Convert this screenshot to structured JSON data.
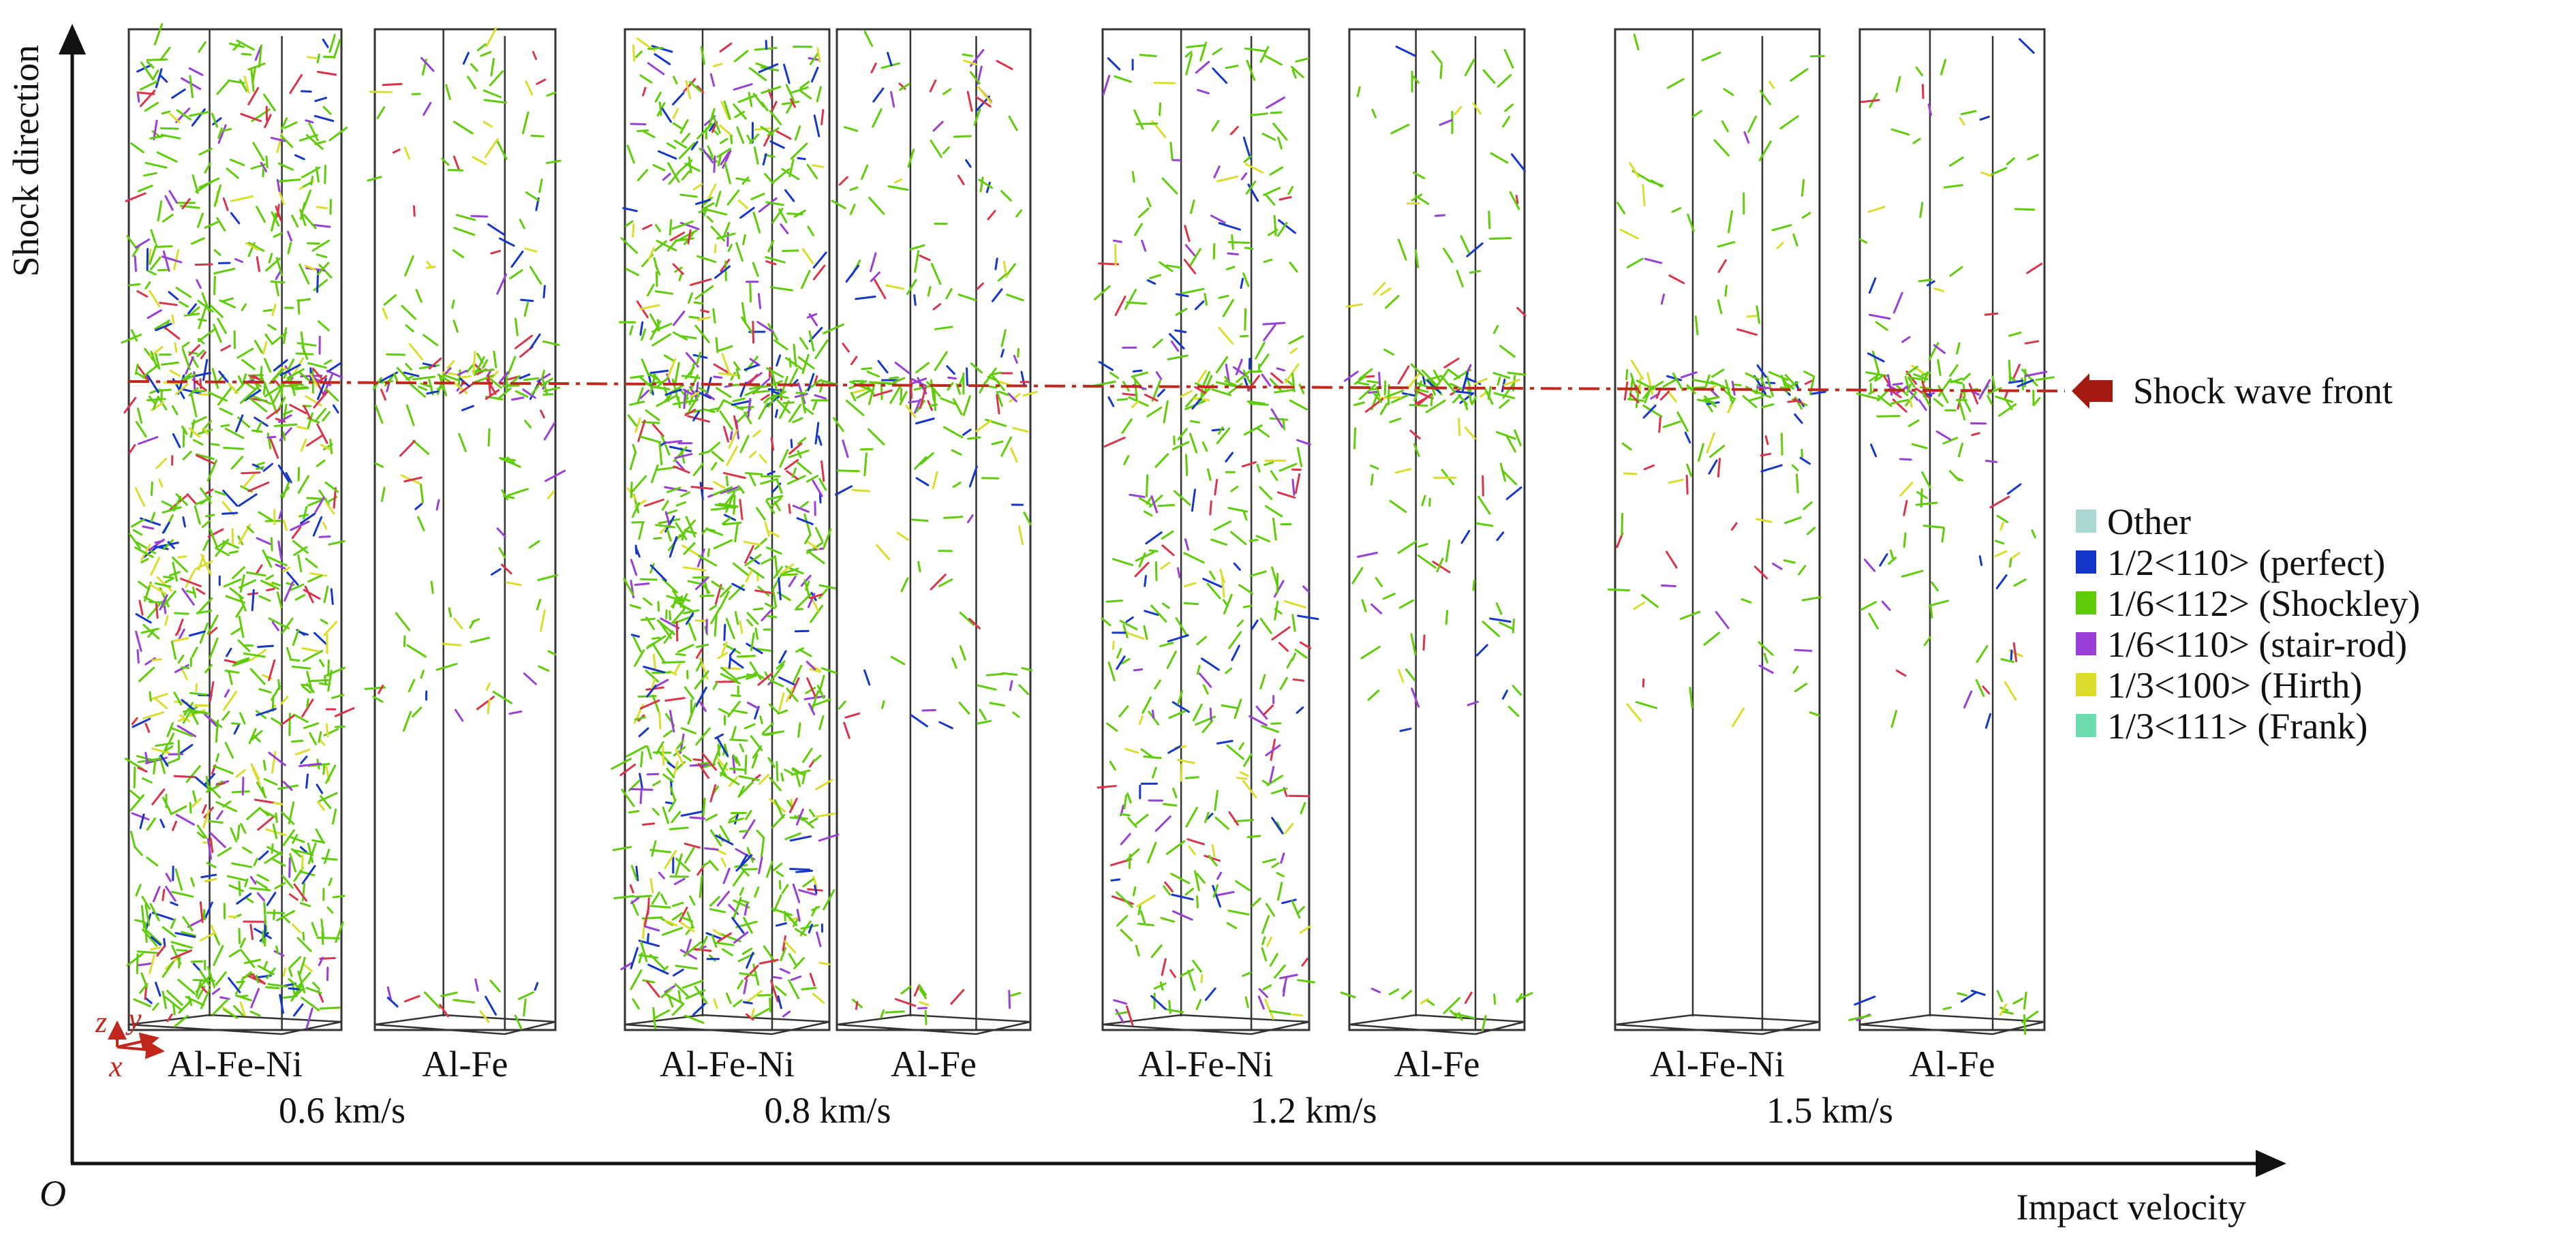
{
  "axes": {
    "y_label": "Shock direction",
    "x_label": "Impact velocity",
    "origin_label": "O"
  },
  "coordinate_triad": {
    "x": "x",
    "y": "y",
    "z": "z"
  },
  "shock_front": {
    "label": "Shock wave front",
    "color": "#c0281e"
  },
  "panels": [
    {
      "material": "Al-Fe-Ni",
      "velocity": "0.6 km/s",
      "density": "high"
    },
    {
      "material": "Al-Fe",
      "velocity": "0.6 km/s",
      "density": "low"
    },
    {
      "material": "Al-Fe-Ni",
      "velocity": "0.8 km/s",
      "density": "high"
    },
    {
      "material": "Al-Fe",
      "velocity": "0.8 km/s",
      "density": "low"
    },
    {
      "material": "Al-Fe-Ni",
      "velocity": "1.2 km/s",
      "density": "medium"
    },
    {
      "material": "Al-Fe",
      "velocity": "1.2 km/s",
      "density": "sparse"
    },
    {
      "material": "Al-Fe-Ni",
      "velocity": "1.5 km/s",
      "density": "sparse"
    },
    {
      "material": "Al-Fe",
      "velocity": "1.5 km/s",
      "density": "sparse"
    }
  ],
  "velocity_labels": [
    "0.6 km/s",
    "0.8 km/s",
    "1.2 km/s",
    "1.5 km/s"
  ],
  "legend": [
    {
      "label": "Other",
      "color": "#a9d9d2"
    },
    {
      "label": "1/2<110> (perfect)",
      "color": "#1537c9"
    },
    {
      "label": "1/6<112> (Shockley)",
      "color": "#5fcc0a"
    },
    {
      "label": "1/6<110> (stair-rod)",
      "color": "#9a3fd6"
    },
    {
      "label": "1/3<100> (Hirth)",
      "color": "#dcdc2c"
    },
    {
      "label": "1/3<111> (Frank)",
      "color": "#6fdcb0"
    }
  ]
}
